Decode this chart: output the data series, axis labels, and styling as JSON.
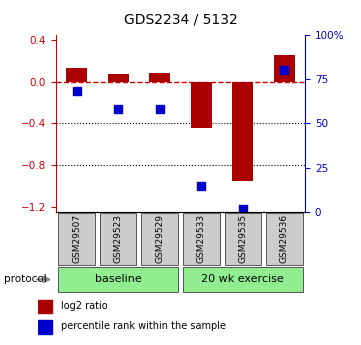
{
  "title": "GDS2234 / 5132",
  "samples": [
    "GSM29507",
    "GSM29523",
    "GSM29529",
    "GSM29533",
    "GSM29535",
    "GSM29536"
  ],
  "log2_ratio": [
    0.13,
    0.07,
    0.08,
    -0.44,
    -0.95,
    0.25
  ],
  "percentile_rank": [
    68,
    58,
    58,
    15,
    2,
    80
  ],
  "ylim_left": [
    -1.25,
    0.45
  ],
  "ylim_right": [
    0,
    100
  ],
  "left_ticks": [
    0.4,
    0.0,
    -0.4,
    -0.8,
    -1.2
  ],
  "right_ticks": [
    100,
    75,
    50,
    25,
    0
  ],
  "bar_color": "#aa0000",
  "dot_color": "#0000cc",
  "bar_width": 0.5,
  "dot_size": 40,
  "protocol_label": "protocol",
  "legend_bar_label": "log2 ratio",
  "legend_dot_label": "percentile rank within the sample",
  "group_label_fontsize": 8,
  "tick_label_fontsize": 7.5,
  "title_fontsize": 10,
  "axis_color_left": "#cc0000",
  "axis_color_right": "#0000cc",
  "gridline_color": "#000000",
  "dashed_zero_color": "#cc0000",
  "xticklabel_gray_bg": "#cccccc",
  "xticklabel_border_color": "#555555",
  "green_color": "#90ee90",
  "groups": [
    {
      "label": "baseline",
      "start": 0,
      "end": 2
    },
    {
      "label": "20 wk exercise",
      "start": 3,
      "end": 5
    }
  ]
}
